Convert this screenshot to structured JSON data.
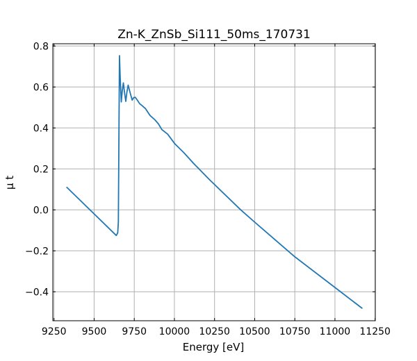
{
  "chart_data": {
    "type": "line",
    "title": "Zn-K_ZnSb_Si111_50ms_170731",
    "xlabel": "Energy [eV]",
    "ylabel": "μ t",
    "xlim": [
      9250,
      11250
    ],
    "ylim": [
      -0.54,
      0.815
    ],
    "grid": true,
    "x_ticks": [
      9250,
      9500,
      9750,
      10000,
      10250,
      10500,
      10750,
      11000,
      11250
    ],
    "y_ticks": [
      -0.4,
      -0.2,
      0.0,
      0.2,
      0.4,
      0.6,
      0.8
    ],
    "x_tick_labels": [
      "9250",
      "9500",
      "9750",
      "10000",
      "10250",
      "10500",
      "10750",
      "11000",
      "11250"
    ],
    "y_tick_labels": [
      "−0.4",
      "−0.2",
      "0.0",
      "0.2",
      "0.4",
      "0.6",
      "0.8"
    ],
    "series": [
      {
        "name": "mu t",
        "color": "#1f77b4",
        "points": [
          [
            9330,
            0.11
          ],
          [
            9638,
            -0.125
          ],
          [
            9647,
            -0.112
          ],
          [
            9651,
            -0.06
          ],
          [
            9654,
            0.3
          ],
          [
            9658,
            0.753
          ],
          [
            9662,
            0.65
          ],
          [
            9669,
            0.527
          ],
          [
            9675,
            0.58
          ],
          [
            9682,
            0.62
          ],
          [
            9690,
            0.57
          ],
          [
            9697,
            0.53
          ],
          [
            9704,
            0.575
          ],
          [
            9712,
            0.609
          ],
          [
            9725,
            0.57
          ],
          [
            9737,
            0.536
          ],
          [
            9746,
            0.548
          ],
          [
            9756,
            0.55
          ],
          [
            9770,
            0.535
          ],
          [
            9783,
            0.519
          ],
          [
            9800,
            0.508
          ],
          [
            9820,
            0.494
          ],
          [
            9849,
            0.46
          ],
          [
            9878,
            0.44
          ],
          [
            9900,
            0.42
          ],
          [
            9922,
            0.392
          ],
          [
            9958,
            0.37
          ],
          [
            10001,
            0.324
          ],
          [
            10059,
            0.279
          ],
          [
            10118,
            0.228
          ],
          [
            10219,
            0.147
          ],
          [
            10413,
            0.0
          ],
          [
            10500,
            -0.06
          ],
          [
            10750,
            -0.229
          ],
          [
            11000,
            -0.379
          ],
          [
            11168,
            -0.48
          ]
        ]
      }
    ]
  }
}
